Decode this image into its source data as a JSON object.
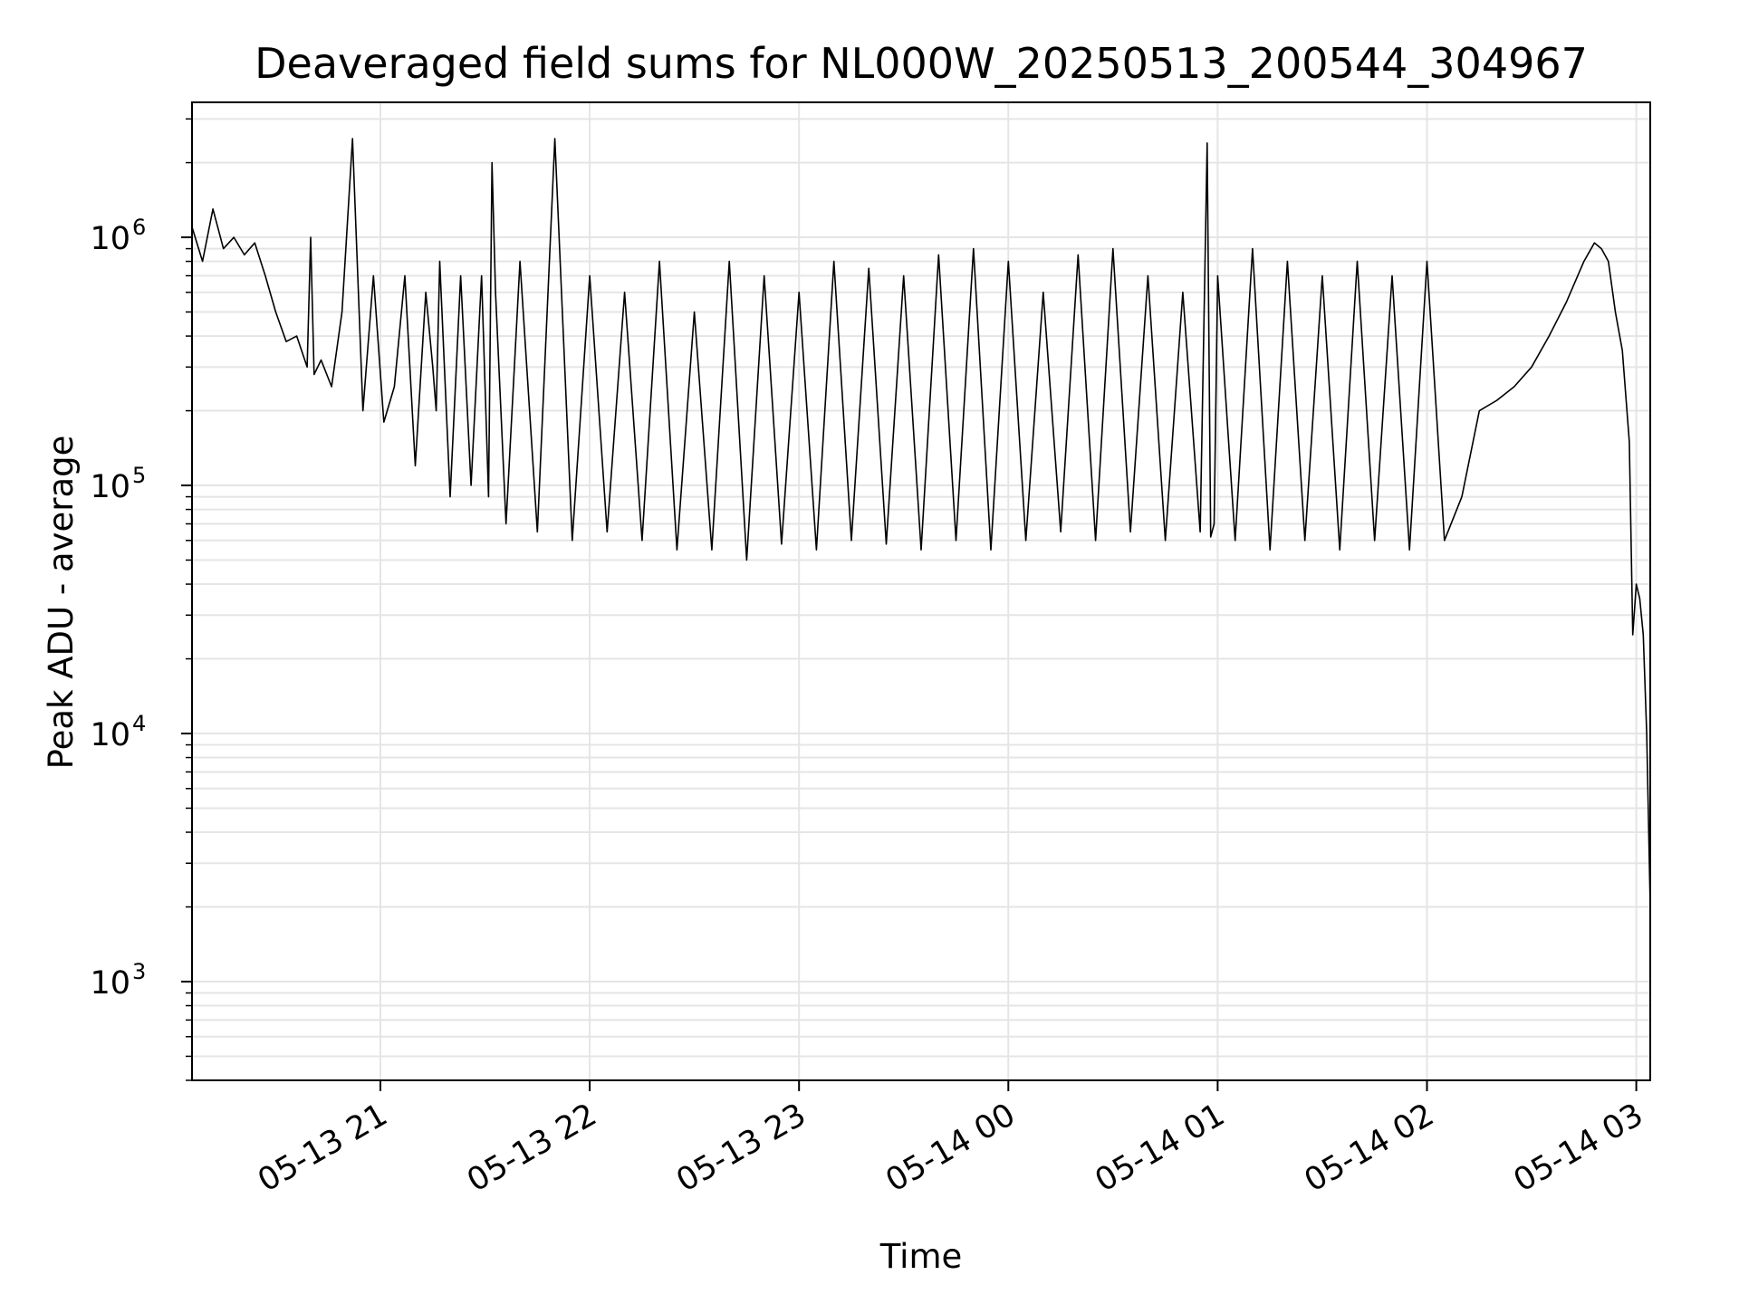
{
  "chart_data": {
    "type": "line",
    "title": "Deaveraged field sums for NL000W_20250513_200544_304967",
    "xlabel": "Time",
    "ylabel": "Peak ADU - average",
    "x_type": "datetime",
    "xlim": [
      "2025-05-13 20:06",
      "2025-05-14 03:04"
    ],
    "x_ticks": [
      "05-13 21",
      "05-13 22",
      "05-13 23",
      "05-14 00",
      "05-14 01",
      "05-14 02",
      "05-14 03"
    ],
    "y_scale": "log",
    "ylim": [
      400,
      3500000
    ],
    "y_ticks": [
      {
        "base": "10",
        "exp": "3"
      },
      {
        "base": "10",
        "exp": "4"
      },
      {
        "base": "10",
        "exp": "5"
      },
      {
        "base": "10",
        "exp": "6"
      }
    ],
    "grid": true,
    "legend": "none",
    "series_color": "#000000",
    "grid_color": "#e5e5e5",
    "series": [
      {
        "x": [
          "2025-05-13 20:06",
          "2025-05-13 20:09",
          "2025-05-13 20:12",
          "2025-05-13 20:15",
          "2025-05-13 20:18",
          "2025-05-13 20:21",
          "2025-05-13 20:24",
          "2025-05-13 20:27",
          "2025-05-13 20:30",
          "2025-05-13 20:33",
          "2025-05-13 20:36",
          "2025-05-13 20:39",
          "2025-05-13 20:40",
          "2025-05-13 20:41",
          "2025-05-13 20:43",
          "2025-05-13 20:46",
          "2025-05-13 20:49",
          "2025-05-13 20:52",
          "2025-05-13 20:55",
          "2025-05-13 20:58",
          "2025-05-13 21:01",
          "2025-05-13 21:04",
          "2025-05-13 21:07",
          "2025-05-13 21:10",
          "2025-05-13 21:13",
          "2025-05-13 21:15",
          "2025-05-13 21:16",
          "2025-05-13 21:17",
          "2025-05-13 21:20",
          "2025-05-13 21:23",
          "2025-05-13 21:26",
          "2025-05-13 21:29",
          "2025-05-13 21:31",
          "2025-05-13 21:32",
          "2025-05-13 21:33",
          "2025-05-13 21:36",
          "2025-05-13 21:40",
          "2025-05-13 21:45",
          "2025-05-13 21:50",
          "2025-05-13 21:55",
          "2025-05-13 22:00",
          "2025-05-13 22:05",
          "2025-05-13 22:10",
          "2025-05-13 22:15",
          "2025-05-13 22:20",
          "2025-05-13 22:25",
          "2025-05-13 22:30",
          "2025-05-13 22:35",
          "2025-05-13 22:40",
          "2025-05-13 22:45",
          "2025-05-13 22:50",
          "2025-05-13 22:55",
          "2025-05-13 23:00",
          "2025-05-13 23:05",
          "2025-05-13 23:10",
          "2025-05-13 23:15",
          "2025-05-13 23:20",
          "2025-05-13 23:25",
          "2025-05-13 23:30",
          "2025-05-13 23:35",
          "2025-05-13 23:40",
          "2025-05-13 23:45",
          "2025-05-13 23:50",
          "2025-05-13 23:55",
          "2025-05-14 00:00",
          "2025-05-14 00:05",
          "2025-05-14 00:10",
          "2025-05-14 00:15",
          "2025-05-14 00:20",
          "2025-05-14 00:25",
          "2025-05-14 00:30",
          "2025-05-14 00:35",
          "2025-05-14 00:40",
          "2025-05-14 00:45",
          "2025-05-14 00:50",
          "2025-05-14 00:55",
          "2025-05-14 00:57",
          "2025-05-14 00:58",
          "2025-05-14 00:59",
          "2025-05-14 01:00",
          "2025-05-14 01:05",
          "2025-05-14 01:10",
          "2025-05-14 01:15",
          "2025-05-14 01:20",
          "2025-05-14 01:25",
          "2025-05-14 01:30",
          "2025-05-14 01:35",
          "2025-05-14 01:40",
          "2025-05-14 01:45",
          "2025-05-14 01:50",
          "2025-05-14 01:55",
          "2025-05-14 02:00",
          "2025-05-14 02:05",
          "2025-05-14 02:10",
          "2025-05-14 02:15",
          "2025-05-14 02:20",
          "2025-05-14 02:25",
          "2025-05-14 02:30",
          "2025-05-14 02:35",
          "2025-05-14 02:40",
          "2025-05-14 02:45",
          "2025-05-14 02:48",
          "2025-05-14 02:50",
          "2025-05-14 02:52",
          "2025-05-14 02:54",
          "2025-05-14 02:56",
          "2025-05-14 02:58",
          "2025-05-14 02:59",
          "2025-05-14 03:00",
          "2025-05-14 03:01",
          "2025-05-14 03:02",
          "2025-05-14 03:03",
          "2025-05-14 03:04"
        ],
        "y": [
          1100000,
          800000,
          1300000,
          900000,
          1000000,
          850000,
          950000,
          700000,
          500000,
          380000,
          400000,
          300000,
          1000000,
          280000,
          320000,
          250000,
          500000,
          2500000,
          200000,
          700000,
          180000,
          250000,
          700000,
          120000,
          600000,
          300000,
          200000,
          800000,
          90000,
          700000,
          100000,
          700000,
          90000,
          2000000,
          600000,
          70000,
          800000,
          65000,
          2500000,
          60000,
          700000,
          65000,
          600000,
          60000,
          800000,
          55000,
          500000,
          55000,
          800000,
          50000,
          700000,
          58000,
          600000,
          55000,
          800000,
          60000,
          750000,
          58000,
          700000,
          55000,
          850000,
          60000,
          900000,
          55000,
          800000,
          60000,
          600000,
          65000,
          850000,
          60000,
          900000,
          65000,
          700000,
          60000,
          600000,
          65000,
          2400000,
          62000,
          70000,
          700000,
          60000,
          900000,
          55000,
          800000,
          60000,
          700000,
          55000,
          800000,
          60000,
          700000,
          55000,
          800000,
          60000,
          90000,
          200000,
          220000,
          250000,
          300000,
          400000,
          550000,
          800000,
          950000,
          900000,
          800000,
          500000,
          350000,
          150000,
          25000,
          40000,
          35000,
          25000,
          10000,
          2000
        ]
      }
    ]
  }
}
